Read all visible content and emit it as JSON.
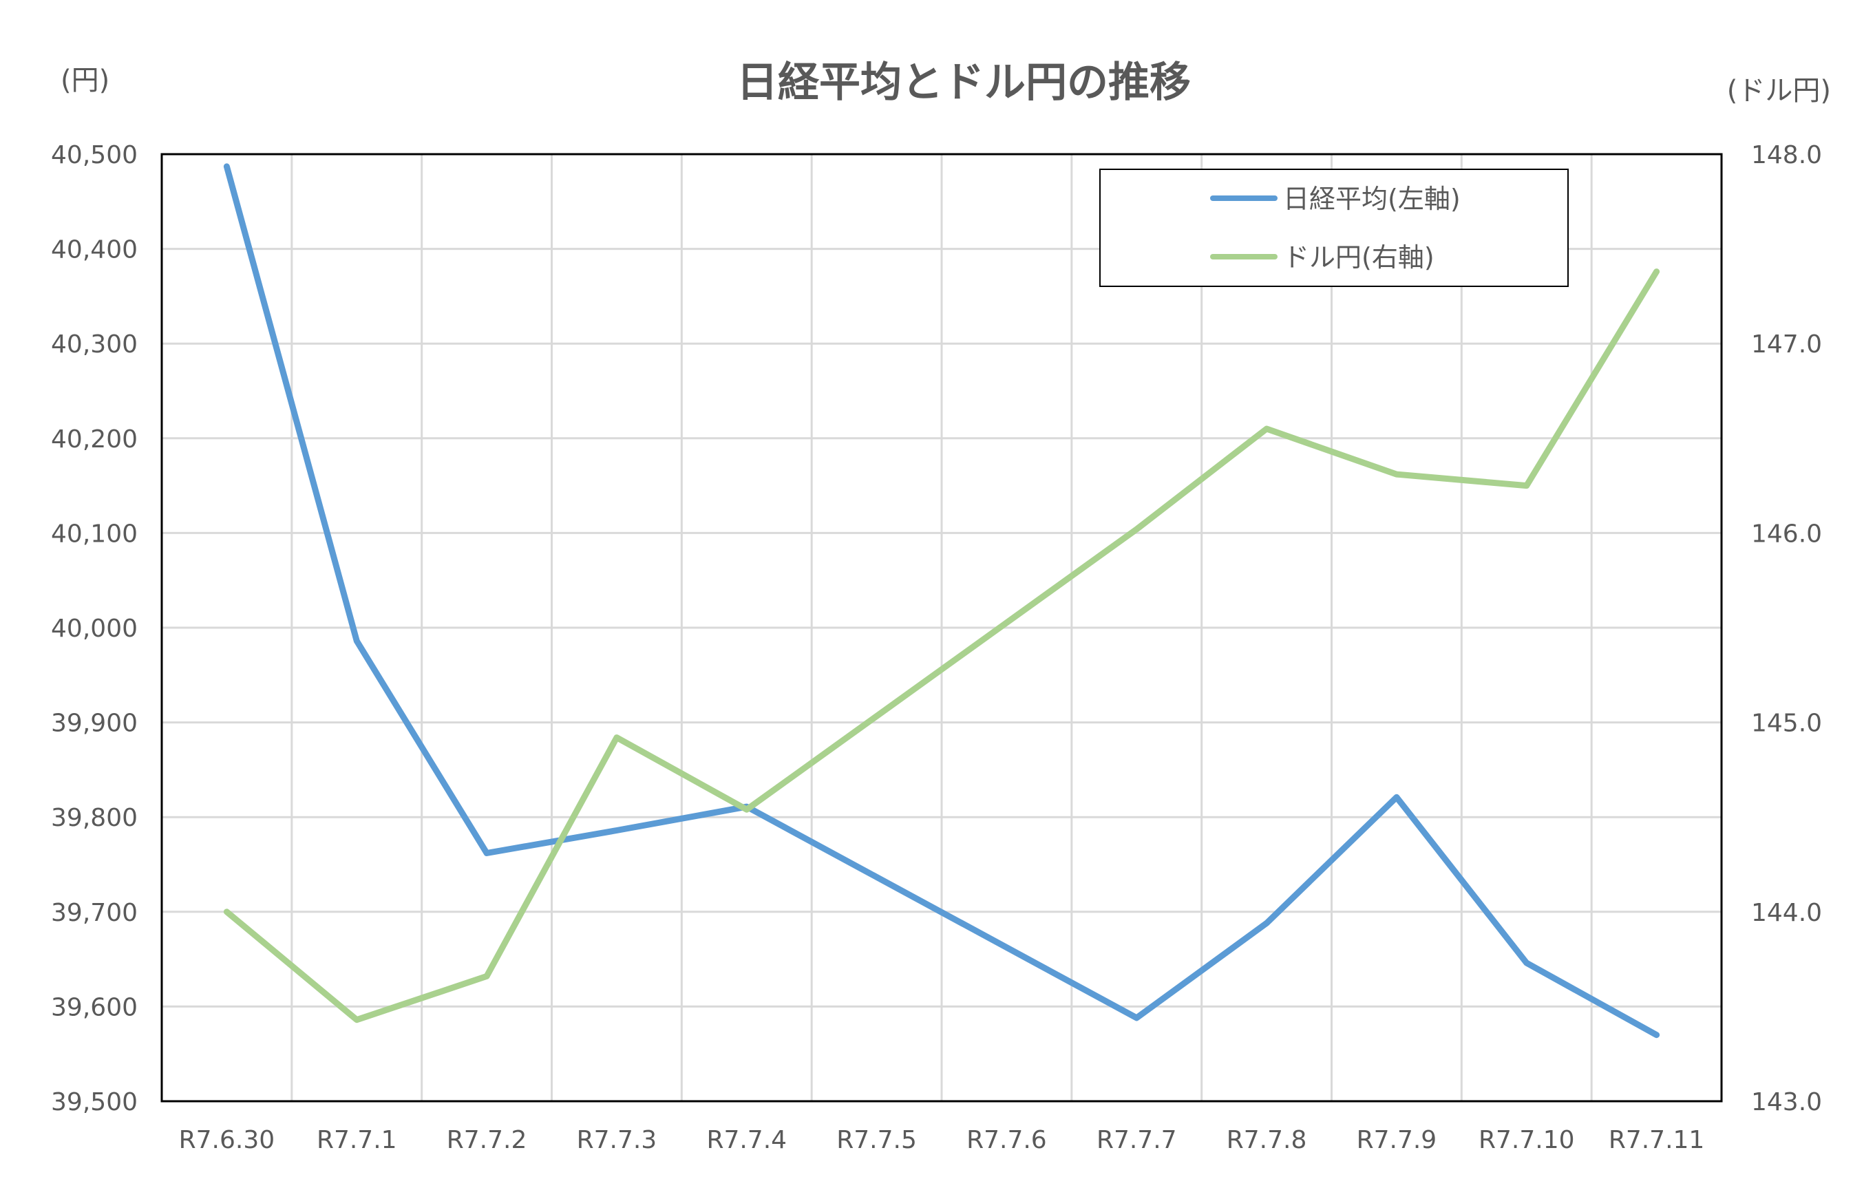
{
  "chart_data": {
    "type": "line",
    "title": "日経平均とドル円の推移",
    "left_axis_unit": "(円)",
    "right_axis_unit": "(ドル円)",
    "categories": [
      "R7.6.30",
      "R7.7.1",
      "R7.7.2",
      "R7.7.3",
      "R7.7.4",
      "R7.7.5",
      "R7.7.6",
      "R7.7.7",
      "R7.7.8",
      "R7.7.9",
      "R7.7.10",
      "R7.7.11"
    ],
    "left_axis": {
      "min": 39500,
      "max": 40500,
      "step": 100,
      "tick_labels": [
        "39,500",
        "39,600",
        "39,700",
        "39,800",
        "39,900",
        "40,000",
        "40,100",
        "40,200",
        "40,300",
        "40,400",
        "40,500"
      ]
    },
    "right_axis": {
      "min": 143.0,
      "max": 148.0,
      "step": 1.0,
      "tick_labels": [
        "143.0",
        "144.0",
        "145.0",
        "146.0",
        "147.0",
        "148.0"
      ]
    },
    "grid": true,
    "legend_position": "top-right",
    "series": [
      {
        "name": "日経平均(左軸)",
        "axis": "left",
        "color": "#5b9bd5",
        "values": [
          40487,
          39986,
          39762,
          39786,
          39811,
          null,
          null,
          39588,
          39688,
          39821,
          39646,
          39570
        ]
      },
      {
        "name": "ドル円(右軸)",
        "axis": "right",
        "color": "#a9d18e",
        "values": [
          144.0,
          143.43,
          143.66,
          144.92,
          144.54,
          null,
          null,
          146.02,
          146.55,
          146.31,
          146.25,
          147.38
        ]
      }
    ]
  }
}
